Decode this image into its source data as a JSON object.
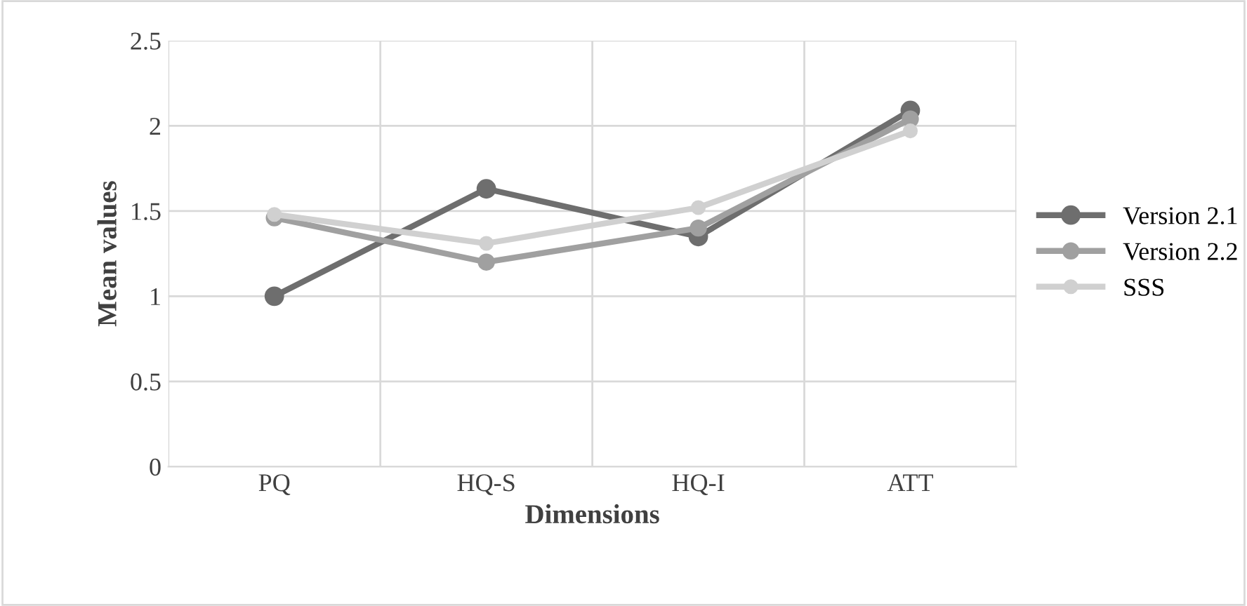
{
  "chart_data": {
    "type": "line",
    "xlabel": "Dimensions",
    "ylabel": "Mean values",
    "categories": [
      "PQ",
      "HQ-S",
      "HQ-I",
      "ATT"
    ],
    "series": [
      {
        "name": "Version 2.1",
        "color": "#6e6e6e",
        "values": [
          1.0,
          1.63,
          1.35,
          2.09
        ]
      },
      {
        "name": "Version 2.2",
        "color": "#a0a0a0",
        "values": [
          1.46,
          1.2,
          1.4,
          2.04
        ]
      },
      {
        "name": "SSS",
        "color": "#d0d0d0",
        "values": [
          1.48,
          1.31,
          1.52,
          1.97
        ]
      }
    ],
    "ylim": [
      0,
      2.5
    ],
    "yticks": [
      0,
      0.5,
      1,
      1.5,
      2,
      2.5
    ],
    "grid": true,
    "legend": "right",
    "marker": "circle",
    "line_style": "solid"
  }
}
